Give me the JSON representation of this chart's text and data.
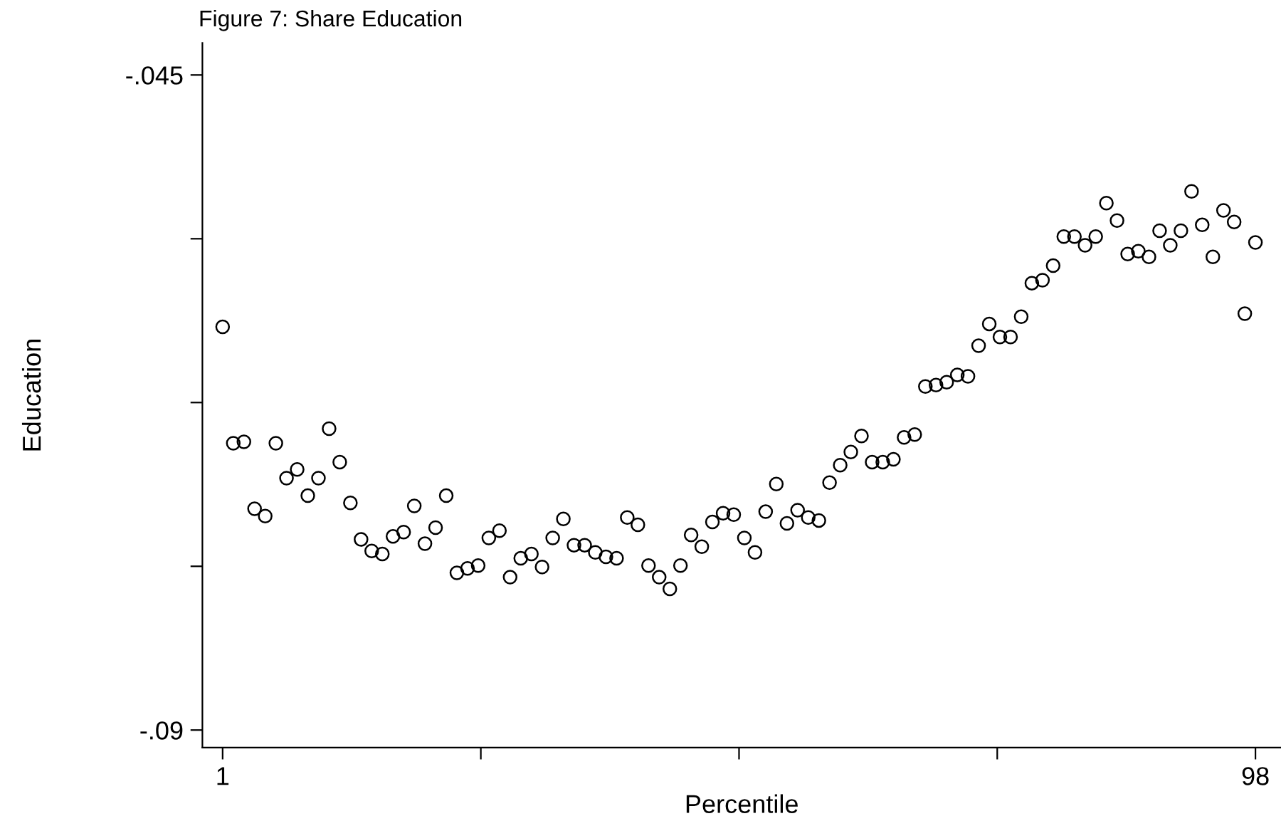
{
  "chart_data": {
    "type": "scatter",
    "title": "Figure 7: Share Education",
    "xlabel": "Percentile",
    "ylabel": "Education",
    "x": [
      1,
      2,
      3,
      4,
      5,
      6,
      7,
      8,
      9,
      10,
      11,
      12,
      13,
      14,
      15,
      16,
      17,
      18,
      19,
      20,
      21,
      22,
      23,
      24,
      25,
      26,
      27,
      28,
      29,
      30,
      31,
      32,
      33,
      34,
      35,
      36,
      37,
      38,
      39,
      40,
      41,
      42,
      43,
      44,
      45,
      46,
      47,
      48,
      49,
      50,
      51,
      52,
      53,
      54,
      55,
      56,
      57,
      58,
      59,
      60,
      61,
      62,
      63,
      64,
      65,
      66,
      67,
      68,
      69,
      70,
      71,
      72,
      73,
      74,
      75,
      76,
      77,
      78,
      79,
      80,
      81,
      82,
      83,
      84,
      85,
      86,
      87,
      88,
      89,
      90,
      91,
      92,
      93,
      94,
      95,
      96,
      97,
      98
    ],
    "series": [
      {
        "color": "#000000",
        "values": [
          -0.0623,
          -0.0703,
          -0.0702,
          -0.0748,
          -0.0753,
          -0.0703,
          -0.0727,
          -0.0721,
          -0.0739,
          -0.0727,
          -0.0693,
          -0.0716,
          -0.0744,
          -0.0769,
          -0.0777,
          -0.0779,
          -0.0767,
          -0.0764,
          -0.0746,
          -0.0772,
          -0.0761,
          -0.0739,
          -0.0792,
          -0.0789,
          -0.0787,
          -0.0768,
          -0.0763,
          -0.0795,
          -0.0782,
          -0.0779,
          -0.0788,
          -0.0768,
          -0.0755,
          -0.0773,
          -0.0773,
          -0.0778,
          -0.0781,
          -0.0782,
          -0.0754,
          -0.0759,
          -0.0787,
          -0.0795,
          -0.0803,
          -0.0787,
          -0.0766,
          -0.0774,
          -0.0757,
          -0.0751,
          -0.0752,
          -0.0768,
          -0.0778,
          -0.075,
          -0.0731,
          -0.0758,
          -0.0749,
          -0.0754,
          -0.0756,
          -0.073,
          -0.0718,
          -0.0709,
          -0.0698,
          -0.0716,
          -0.0716,
          -0.0714,
          -0.0699,
          -0.0697,
          -0.0664,
          -0.0663,
          -0.0661,
          -0.0656,
          -0.0657,
          -0.0636,
          -0.0621,
          -0.063,
          -0.063,
          -0.0616,
          -0.0593,
          -0.0591,
          -0.0581,
          -0.0561,
          -0.0561,
          -0.0567,
          -0.0561,
          -0.0538,
          -0.055,
          -0.0573,
          -0.0571,
          -0.0575,
          -0.0557,
          -0.0567,
          -0.0557,
          -0.053,
          -0.0553,
          -0.0575,
          -0.0543,
          -0.0551,
          -0.0614,
          -0.0565
        ]
      }
    ],
    "marker": "circle",
    "grid": false,
    "xlim": [
      -0.9,
      100.4
    ],
    "ylim": [
      -0.0912,
      -0.0428
    ],
    "xticks": [
      1,
      {
        "value": 25.25,
        "label": null
      },
      {
        "value": 49.5,
        "label": null
      },
      {
        "value": 73.75,
        "label": null
      },
      98
    ],
    "yticks": [
      {
        "value": -0.09,
        "label": "-.09"
      },
      {
        "value": -0.07875,
        "label": null
      },
      {
        "value": -0.0675,
        "label": null
      },
      {
        "value": -0.05625,
        "label": null
      },
      {
        "value": -0.045,
        "label": "-.045"
      }
    ]
  }
}
